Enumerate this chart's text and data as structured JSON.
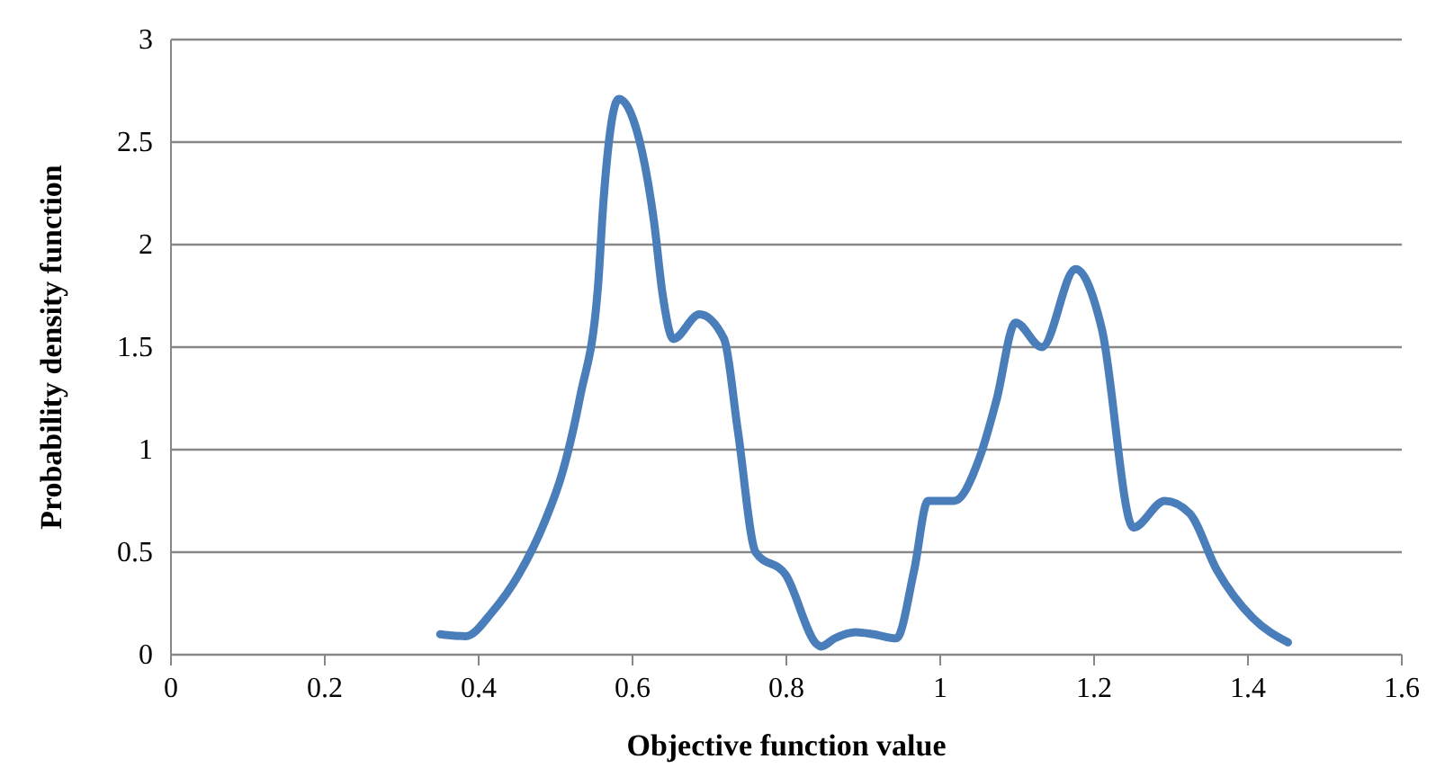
{
  "chart_data": {
    "type": "line",
    "xlabel": "Objective function value",
    "ylabel": "Probability density function",
    "xlim": [
      0,
      1.6
    ],
    "xticks": [
      0,
      0.2,
      0.4,
      0.6,
      0.8,
      1,
      1.2,
      1.4,
      1.6
    ],
    "ylim": [
      0,
      3
    ],
    "yticks": [
      0,
      0.5,
      1,
      1.5,
      2,
      2.5,
      3
    ],
    "grid": "y",
    "marker": "none",
    "line_style": "solid",
    "series": [
      {
        "color": "#4a7ebb",
        "x": [
          0.35,
          0.383,
          0.418,
          0.452,
          0.486,
          0.509,
          0.532,
          0.555,
          0.562,
          0.582,
          0.612,
          0.628,
          0.639,
          0.653,
          0.687,
          0.719,
          0.737,
          0.76,
          0.799,
          0.84,
          0.845,
          0.863,
          0.89,
          0.913,
          0.943,
          0.966,
          0.984,
          1.018,
          1.052,
          1.073,
          1.098,
          1.132,
          1.176,
          1.21,
          1.251,
          1.292,
          1.324,
          1.36,
          1.406,
          1.452
        ],
        "values": [
          0.1,
          0.09,
          0.21,
          0.39,
          0.65,
          0.89,
          1.26,
          1.79,
          2.2,
          2.71,
          2.46,
          2.11,
          1.76,
          1.54,
          1.66,
          1.54,
          1.09,
          0.5,
          0.39,
          0.05,
          0.04,
          0.08,
          0.11,
          0.1,
          0.08,
          0.41,
          0.75,
          0.75,
          0.97,
          1.24,
          1.62,
          1.5,
          1.88,
          1.59,
          0.62,
          0.75,
          0.69,
          0.41,
          0.18,
          0.06
        ]
      }
    ]
  }
}
